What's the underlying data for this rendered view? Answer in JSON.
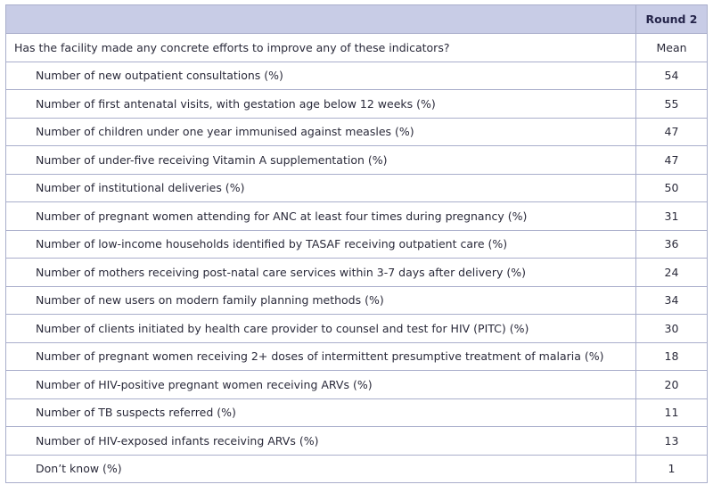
{
  "header": {
    "round_label": "Round 2"
  },
  "question": {
    "text": "Has the facility made any concrete efforts to improve any of these indicators?",
    "value_header": "Mean"
  },
  "rows": [
    {
      "label": "Number of new outpatient consultations (%)",
      "value": "54"
    },
    {
      "label": "Number of first antenatal visits, with gestation age below 12 weeks (%)",
      "value": "55"
    },
    {
      "label": "Number of children under one year immunised against measles (%)",
      "value": "47"
    },
    {
      "label": "Number of under-five receiving Vitamin A supplementation (%)",
      "value": "47"
    },
    {
      "label": "Number of institutional deliveries (%)",
      "value": "50"
    },
    {
      "label": "Number of pregnant women attending for ANC at least four times during pregnancy (%)",
      "value": "31"
    },
    {
      "label": "Number of low-income households identified by TASAF receiving outpatient care (%)",
      "value": "36"
    },
    {
      "label": "Number of mothers receiving post-natal care services within 3-7 days after delivery (%)",
      "value": "24"
    },
    {
      "label": "Number of new users on modern family planning methods (%)",
      "value": "34"
    },
    {
      "label": "Number of clients initiated by health care provider to counsel and test for HIV (PITC) (%)",
      "value": "30"
    },
    {
      "label": "Number of pregnant women receiving 2+ doses of intermittent presumptive treatment of malaria (%)",
      "value": "18"
    },
    {
      "label": "Number of HIV-positive pregnant women receiving ARVs (%)",
      "value": "20"
    },
    {
      "label": "Number of TB suspects referred (%)",
      "value": "11"
    },
    {
      "label": "Number of HIV-exposed infants receiving ARVs (%)",
      "value": "13"
    },
    {
      "label": "Don’t know (%)",
      "value": "1"
    }
  ]
}
